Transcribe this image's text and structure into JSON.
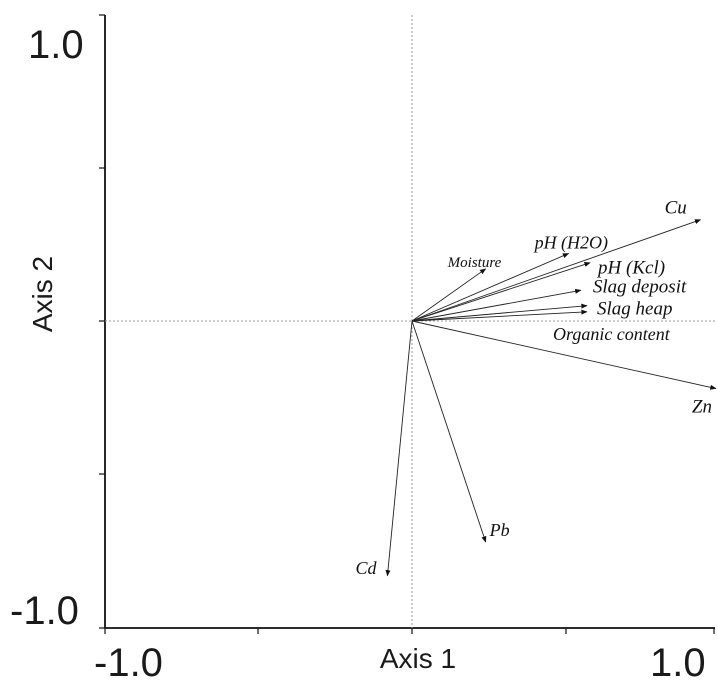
{
  "chart_data": {
    "type": "biplot",
    "xlabel": "Axis 1",
    "ylabel": "Axis 2",
    "xlim": [
      -1.0,
      1.0
    ],
    "ylim": [
      -1.0,
      1.0
    ],
    "x_tick_labels": {
      "min": "-1.0",
      "max": "1.0"
    },
    "y_tick_labels": {
      "min": "-1.0",
      "max": "1.0"
    },
    "grid": "dotted zero lines",
    "vectors": [
      {
        "name": "Cu",
        "x": 0.94,
        "y": 0.33
      },
      {
        "name": "pH (H2O)",
        "x": 0.51,
        "y": 0.22
      },
      {
        "name": "Moisture",
        "x": 0.24,
        "y": 0.17
      },
      {
        "name": "pH (Kcl)",
        "x": 0.58,
        "y": 0.19
      },
      {
        "name": "Slag deposit",
        "x": 0.55,
        "y": 0.1
      },
      {
        "name": "Slag heap",
        "x": 0.57,
        "y": 0.05
      },
      {
        "name": "Organic content",
        "x": 0.57,
        "y": 0.03
      },
      {
        "name": "Zn",
        "x": 0.99,
        "y": -0.22
      },
      {
        "name": "Pb",
        "x": 0.24,
        "y": -0.72
      },
      {
        "name": "Cd",
        "x": -0.08,
        "y": -0.83
      }
    ]
  }
}
